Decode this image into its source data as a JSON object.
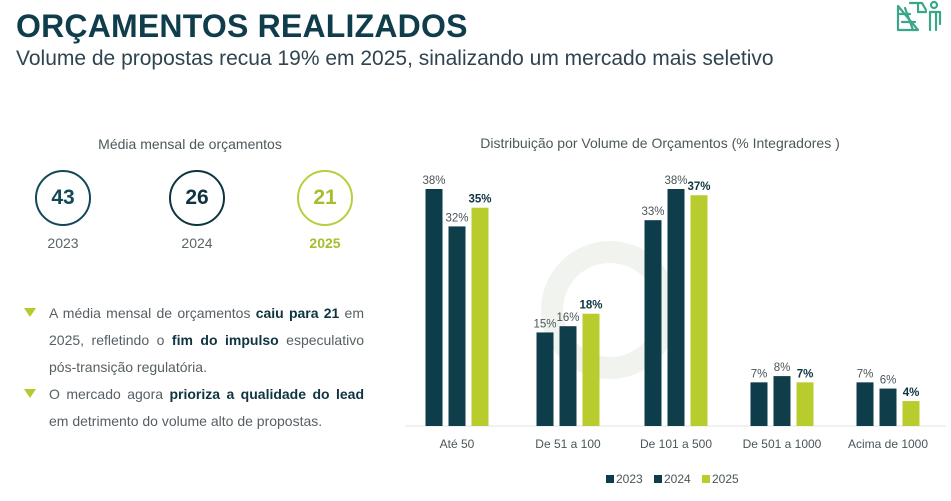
{
  "header": {
    "title": "ORÇAMENTOS REALIZADOS",
    "subtitle": "Volume de propostas recua 19% em 2025, sinalizando um mercado mais seletivo",
    "logo_icon": "solar-installer-icon"
  },
  "kpis": {
    "heading": "Média mensal de orçamentos",
    "items": [
      {
        "value": "43",
        "year": "2023"
      },
      {
        "value": "26",
        "year": "2024"
      },
      {
        "value": "21",
        "year": "2025"
      }
    ]
  },
  "bullets": [
    {
      "parts": [
        {
          "text": "A média mensal de orçamentos ",
          "bold": false
        },
        {
          "text": "caiu para 21",
          "bold": true
        },
        {
          "text": " em 2025, refletindo o ",
          "bold": false
        },
        {
          "text": "fim do impulso",
          "bold": true
        },
        {
          "text": " especulativo pós-transição regulatória.",
          "bold": false
        }
      ]
    },
    {
      "parts": [
        {
          "text": "O mercado agora ",
          "bold": false
        },
        {
          "text": "prioriza a qualidade do lead",
          "bold": true
        },
        {
          "text": " em detrimento do volume alto de propostas.",
          "bold": false
        }
      ]
    }
  ],
  "colors": {
    "c2023": "#0d3d4a",
    "c2024": "#0f3d4a",
    "c2025": "#b9cc2e",
    "accent": "#b7c930",
    "brand_dark": "#0f3d4c",
    "logo": "#3aa68a"
  },
  "chart_data": {
    "type": "bar",
    "title": "Distribuição por Volume de Orçamentos (% Integradores )",
    "xlabel": "",
    "ylabel": "",
    "ylim": [
      0,
      40
    ],
    "grid": false,
    "legend_position": "bottom",
    "categories": [
      "Até 50",
      "De 51 a 100",
      "De 101 a 500",
      "De 501 a 1000",
      "Acima de 1000"
    ],
    "series": [
      {
        "name": "2023",
        "values": [
          38,
          15,
          33,
          7,
          7
        ],
        "labels": [
          "38%",
          "15%",
          "33%",
          "7%",
          "7%"
        ]
      },
      {
        "name": "2024",
        "values": [
          32,
          16,
          38,
          8,
          6
        ],
        "labels": [
          "32%",
          "16%",
          "38%",
          "8%",
          "6%"
        ]
      },
      {
        "name": "2025",
        "values": [
          35,
          18,
          37,
          7,
          4
        ],
        "labels": [
          "35%",
          "18%",
          "37%",
          "7%",
          "4%"
        ]
      }
    ]
  }
}
